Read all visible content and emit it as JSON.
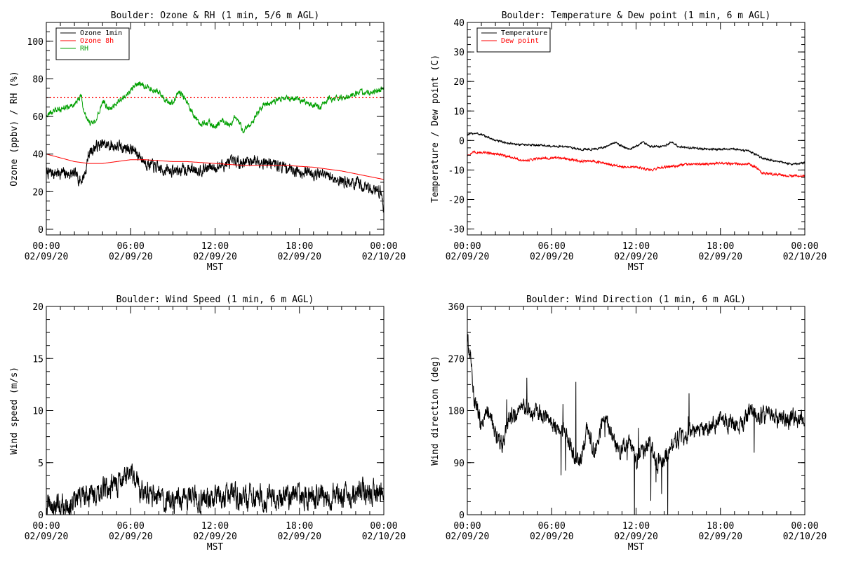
{
  "chart_data": [
    {
      "type": "line",
      "title": "Boulder: Ozone & RH (1 min, 5/6 m AGL)",
      "xlabel": "MST",
      "ylabel": "Ozone (ppbv) / RH (%)",
      "xlim_hours": [
        0,
        24
      ],
      "ylim": [
        -3,
        110
      ],
      "yticks": [
        0,
        20,
        40,
        60,
        80,
        100
      ],
      "xtick_labels": [
        [
          "00:00",
          "02/09/20"
        ],
        [
          "06:00",
          "02/09/20"
        ],
        [
          "12:00",
          "02/09/20"
        ],
        [
          "18:00",
          "02/09/20"
        ],
        [
          "00:00",
          "02/10/20"
        ]
      ],
      "grid": false,
      "legend": "top-left",
      "reference_lines": [
        {
          "y": 70,
          "color": "#ff0000",
          "style": "dotted"
        }
      ],
      "series": [
        {
          "name": "Ozone 1min",
          "color": "#000000",
          "noise": 2.5,
          "x": [
            0,
            1,
            2,
            2.5,
            2.8,
            3,
            3.5,
            4,
            5,
            6,
            6.5,
            7,
            8,
            9,
            10,
            11,
            12,
            13,
            14,
            15,
            16,
            17,
            18,
            19,
            20,
            21,
            22,
            23,
            23.8,
            24
          ],
          "y": [
            30,
            30,
            29,
            26,
            31,
            40,
            44,
            45,
            44,
            43,
            40,
            36,
            32,
            31,
            32,
            32,
            33,
            35,
            36,
            37,
            35,
            33,
            31,
            30,
            28,
            26,
            24,
            22,
            20,
            10
          ]
        },
        {
          "name": "Ozone 8h",
          "color": "#ff0000",
          "noise": 0,
          "x": [
            0,
            1,
            2,
            3,
            4,
            5,
            6,
            7,
            8,
            9,
            10,
            11,
            12,
            13,
            14,
            15,
            16,
            17,
            18,
            19,
            20,
            21,
            22,
            23,
            24
          ],
          "y": [
            40,
            38,
            36,
            35,
            35,
            36,
            37,
            37,
            36.5,
            36,
            36,
            35.5,
            35,
            34.5,
            34,
            34,
            34,
            34,
            33.5,
            33,
            32,
            31,
            29.5,
            28,
            26.5
          ]
        },
        {
          "name": "RH",
          "color": "#00a000",
          "noise": 1.2,
          "x": [
            0,
            1,
            2,
            2.5,
            2.6,
            3,
            3.5,
            4,
            4.5,
            5,
            5.5,
            6,
            6.5,
            7,
            7.5,
            8,
            8.5,
            9,
            9.5,
            10,
            10.5,
            11,
            11.5,
            12,
            12.5,
            13,
            13.5,
            14,
            14.5,
            15,
            15.5,
            16,
            17,
            18,
            19,
            19.5,
            20,
            21,
            22,
            23,
            24
          ],
          "y": [
            61,
            64,
            66,
            72,
            64,
            57,
            56,
            68,
            64,
            67,
            70,
            74,
            78,
            76,
            74,
            73,
            68,
            67,
            73,
            68,
            60,
            56,
            57,
            54,
            59,
            55,
            60,
            52,
            56,
            61,
            67,
            67,
            70,
            69,
            66,
            65,
            69,
            70,
            72,
            73,
            75
          ]
        }
      ]
    },
    {
      "type": "line",
      "title": "Boulder: Temperature & Dew point (1 min, 6 m AGL)",
      "xlabel": "MST",
      "ylabel": "Temperature / Dew point (C)",
      "xlim_hours": [
        0,
        24
      ],
      "ylim": [
        -32,
        40
      ],
      "yticks": [
        -30,
        -20,
        -10,
        0,
        10,
        20,
        30,
        40
      ],
      "xtick_labels": [
        [
          "00:00",
          "02/09/20"
        ],
        [
          "06:00",
          "02/09/20"
        ],
        [
          "12:00",
          "02/09/20"
        ],
        [
          "18:00",
          "02/09/20"
        ],
        [
          "00:00",
          "02/10/20"
        ]
      ],
      "grid": false,
      "legend": "top-left",
      "series": [
        {
          "name": "Temperature",
          "color": "#000000",
          "noise": 0.25,
          "x": [
            0,
            0.5,
            1,
            2,
            3,
            4,
            5,
            6,
            7,
            8,
            9,
            10,
            10.5,
            11,
            11.5,
            12,
            12.5,
            13,
            14,
            14.5,
            15,
            16,
            17,
            18,
            19,
            20,
            21,
            22,
            23,
            24
          ],
          "y": [
            2,
            2.5,
            2,
            0,
            -1,
            -1.5,
            -1.5,
            -2,
            -2,
            -3,
            -3,
            -2,
            -0.5,
            -2,
            -3,
            -2,
            -0.5,
            -2,
            -2,
            -0.5,
            -2,
            -2.5,
            -3,
            -3,
            -3,
            -3.5,
            -6,
            -7,
            -8,
            -7.5
          ]
        },
        {
          "name": "Dew point",
          "color": "#ff0000",
          "noise": 0.3,
          "x": [
            0,
            0.5,
            1,
            2,
            3,
            4,
            5,
            6,
            7,
            8,
            9,
            10,
            11,
            12,
            13,
            14,
            15,
            16,
            17,
            18,
            19,
            20,
            20.5,
            21,
            22,
            23,
            24
          ],
          "y": [
            -5,
            -4,
            -4,
            -4.5,
            -5.5,
            -7,
            -6,
            -6,
            -6,
            -7,
            -7,
            -8,
            -9,
            -9,
            -10,
            -9,
            -8.5,
            -8,
            -8,
            -7.5,
            -8,
            -8,
            -9,
            -11,
            -11.5,
            -12,
            -12
          ]
        }
      ]
    },
    {
      "type": "line",
      "title": "Boulder: Wind Speed (1 min, 6 m AGL)",
      "xlabel": "MST",
      "ylabel": "Wind speed (m/s)",
      "xlim_hours": [
        0,
        24
      ],
      "ylim": [
        0,
        20
      ],
      "yticks": [
        0,
        5,
        10,
        15,
        20
      ],
      "xtick_labels": [
        [
          "00:00",
          "02/09/20"
        ],
        [
          "06:00",
          "02/09/20"
        ],
        [
          "12:00",
          "02/09/20"
        ],
        [
          "18:00",
          "02/09/20"
        ],
        [
          "00:00",
          "02/10/20"
        ]
      ],
      "grid": false,
      "legend": "none",
      "series": [
        {
          "name": "",
          "color": "#000000",
          "noise": 0.9,
          "x": [
            0,
            1,
            2,
            2.5,
            3,
            4,
            5,
            5.5,
            6,
            7,
            8,
            9,
            10,
            11,
            12,
            13,
            14,
            15,
            16,
            17,
            18,
            19,
            20,
            21,
            22,
            23,
            24
          ],
          "y": [
            0.8,
            0.8,
            1.0,
            1.8,
            2.0,
            2.4,
            3.0,
            3.6,
            3.4,
            2.3,
            1.6,
            1.4,
            1.5,
            1.6,
            1.8,
            1.7,
            1.5,
            1.6,
            1.7,
            1.6,
            1.8,
            1.5,
            1.6,
            1.8,
            2.0,
            2.1,
            2.2
          ]
        }
      ]
    },
    {
      "type": "line",
      "title": "Boulder: Wind Direction (1 min, 6 m AGL)",
      "xlabel": "MST",
      "ylabel": "Wind direction (deg)",
      "xlim_hours": [
        0,
        24
      ],
      "ylim": [
        0,
        360
      ],
      "yticks": [
        0,
        90,
        180,
        270,
        360
      ],
      "xtick_labels": [
        [
          "00:00",
          "02/09/20"
        ],
        [
          "06:00",
          "02/09/20"
        ],
        [
          "12:00",
          "02/09/20"
        ],
        [
          "18:00",
          "02/09/20"
        ],
        [
          "00:00",
          "02/10/20"
        ]
      ],
      "grid": false,
      "legend": "none",
      "series": [
        {
          "name": "",
          "color": "#000000",
          "noise": 12,
          "x": [
            0,
            0.2,
            0.5,
            1,
            1.5,
            2,
            2.5,
            3,
            3.5,
            4,
            5,
            6,
            7,
            7.5,
            8,
            8.5,
            9,
            9.5,
            10,
            10.5,
            11,
            11.5,
            12,
            12.5,
            13,
            13.5,
            14,
            15,
            16,
            17,
            18,
            19,
            19.5,
            20,
            21,
            22,
            23,
            24
          ],
          "y": [
            300,
            280,
            200,
            150,
            180,
            140,
            120,
            170,
            175,
            185,
            175,
            160,
            140,
            110,
            90,
            150,
            110,
            150,
            160,
            120,
            110,
            130,
            90,
            110,
            120,
            90,
            100,
            130,
            140,
            145,
            160,
            160,
            150,
            180,
            175,
            170,
            165,
            165
          ]
        }
      ]
    }
  ]
}
